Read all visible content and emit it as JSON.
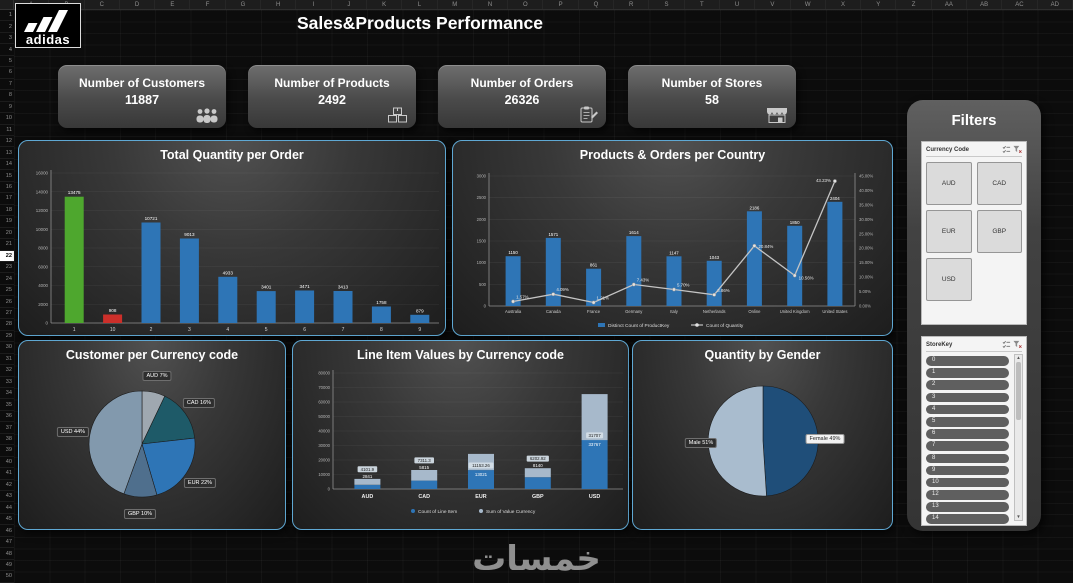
{
  "excel": {
    "columns": [
      "A",
      "B",
      "C",
      "D",
      "E",
      "F",
      "G",
      "H",
      "I",
      "J",
      "K",
      "L",
      "M",
      "N",
      "O",
      "P",
      "Q",
      "R",
      "S",
      "T",
      "U",
      "V",
      "W",
      "X",
      "Y",
      "Z",
      "AA",
      "AB",
      "AC",
      "AD"
    ],
    "rows": [
      "1",
      "2",
      "3",
      "4",
      "5",
      "6",
      "7",
      "8",
      "9",
      "10",
      "11",
      "12",
      "13",
      "14",
      "15",
      "16",
      "17",
      "18",
      "19",
      "20",
      "21",
      "22",
      "23",
      "24",
      "25",
      "26",
      "27",
      "28",
      "29",
      "30",
      "31",
      "32",
      "33",
      "34",
      "35",
      "36",
      "37",
      "38",
      "39",
      "40",
      "41",
      "42",
      "43",
      "44",
      "45",
      "46",
      "47",
      "48",
      "49",
      "50"
    ],
    "selected_row": "22"
  },
  "header": {
    "title": "Sales&Products Performance",
    "logo_text": "adidas"
  },
  "kpis": [
    {
      "label": "Number of Customers",
      "value": "11887",
      "icon": "customers-icon"
    },
    {
      "label": "Number of Products",
      "value": "2492",
      "icon": "products-icon"
    },
    {
      "label": "Number of Orders",
      "value": "26326",
      "icon": "orders-icon"
    },
    {
      "label": "Number of Stores",
      "value": "58",
      "icon": "stores-icon"
    }
  ],
  "chart_data": [
    {
      "type": "bar",
      "title": "Total Quantity  per Order",
      "categories": [
        "1",
        "10",
        "2",
        "3",
        "4",
        "5",
        "6",
        "7",
        "8",
        "9"
      ],
      "values": [
        13475,
        908,
        10721,
        9013,
        4933,
        3401,
        3471,
        3413,
        1758,
        879
      ],
      "bar_colors": [
        "#4ea72e",
        "#cc2f2a",
        "#2e75b6",
        "#2e75b6",
        "#2e75b6",
        "#2e75b6",
        "#2e75b6",
        "#2e75b6",
        "#2e75b6",
        "#2e75b6"
      ],
      "ylim": [
        0,
        16000
      ],
      "ytick_step": 2000,
      "xlabel": "",
      "ylabel": "",
      "grid": true,
      "legend_position": "none"
    },
    {
      "type": "combo",
      "title": "Products & Orders per Country",
      "categories": [
        "Australia",
        "Canada",
        "France",
        "Germany",
        "Italy",
        "Netherlands",
        "Online",
        "United Kingdom",
        "United States"
      ],
      "series": [
        {
          "name": "Distinct Count of ProductKey",
          "type": "bar",
          "color": "#2e75b6",
          "values": [
            1150,
            1571,
            861,
            1614,
            1147,
            1043,
            2186,
            1850,
            2404
          ]
        },
        {
          "name": "Count of Quantity",
          "type": "line",
          "color": "#c4c4c4",
          "unit": "%",
          "values": [
            1.57,
            4.09,
            1.21,
            7.43,
            5.7,
            3.86,
            20.84,
            10.56,
            43.23
          ]
        }
      ],
      "ylim_left": [
        0,
        3000
      ],
      "ytick_step_left": 500,
      "ylim_right": [
        0,
        45
      ],
      "ytick_step_right": 5,
      "grid": true,
      "legend_position": "bottom"
    },
    {
      "type": "pie",
      "title": "Customer per Currency code",
      "labels": [
        "AUD",
        "CAD",
        "EUR",
        "GBP",
        "USD"
      ],
      "values": [
        7,
        16,
        22,
        10,
        44
      ],
      "colors": [
        "#9fa8b0",
        "#1e5a68",
        "#2e75b6",
        "#4f6f8d",
        "#8299ad"
      ],
      "legend_position": "labels"
    },
    {
      "type": "bar-stacked",
      "title": "Line Item Values by Currency code",
      "categories": [
        "AUD",
        "CAD",
        "EUR",
        "GBP",
        "USD"
      ],
      "series": [
        {
          "name": "Count of Line Item",
          "color": "#2e75b6",
          "values": [
            2841,
            5815,
            13021,
            8140,
            33767
          ]
        },
        {
          "name": "Sum of Value Currency",
          "color": "#a7b9cb",
          "values": [
            4101.9,
            7311.3,
            11153.26,
            6202.92,
            31707
          ]
        }
      ],
      "ylim": [
        0,
        80000
      ],
      "ytick_step": 10000,
      "grid": true,
      "legend_position": "bottom"
    },
    {
      "type": "pie",
      "title": "Quantity by Gender",
      "labels": [
        "Female",
        "Male"
      ],
      "values": [
        49,
        51
      ],
      "colors": [
        "#1f4e79",
        "#a9bcce"
      ],
      "legend_position": "labels"
    }
  ],
  "filters": {
    "title": "Filters",
    "currency": {
      "label": "Currency Code",
      "options": [
        "AUD",
        "CAD",
        "EUR",
        "GBP",
        "USD"
      ]
    },
    "storekey": {
      "label": "StoreKey",
      "items": [
        "0",
        "1",
        "2",
        "3",
        "4",
        "5",
        "6",
        "7",
        "8",
        "9",
        "10",
        "12",
        "13",
        "14"
      ]
    }
  },
  "watermark": "خمسات"
}
